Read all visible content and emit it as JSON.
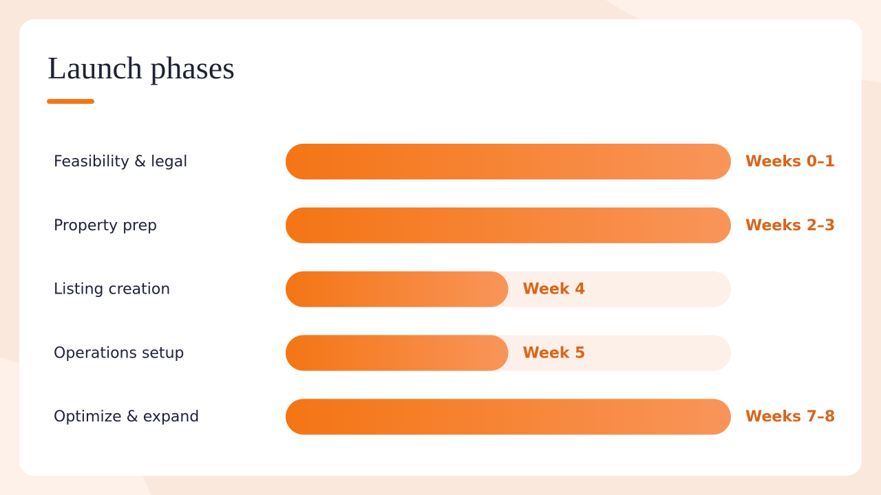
{
  "chart_data": {
    "type": "bar",
    "orientation": "horizontal",
    "title": "Launch phases",
    "categories": [
      "Feasibility & legal",
      "Property prep",
      "Listing creation",
      "Operations setup",
      "Optimize & expand"
    ],
    "values": [
      2,
      2,
      1,
      1,
      2
    ],
    "value_labels": [
      "Weeks 0–1",
      "Weeks 2–3",
      "Week 4",
      "Week 5",
      "Weeks 7–8"
    ],
    "xlim": [
      0,
      2
    ],
    "color": "#f47514",
    "color_end": "#f9955a"
  }
}
